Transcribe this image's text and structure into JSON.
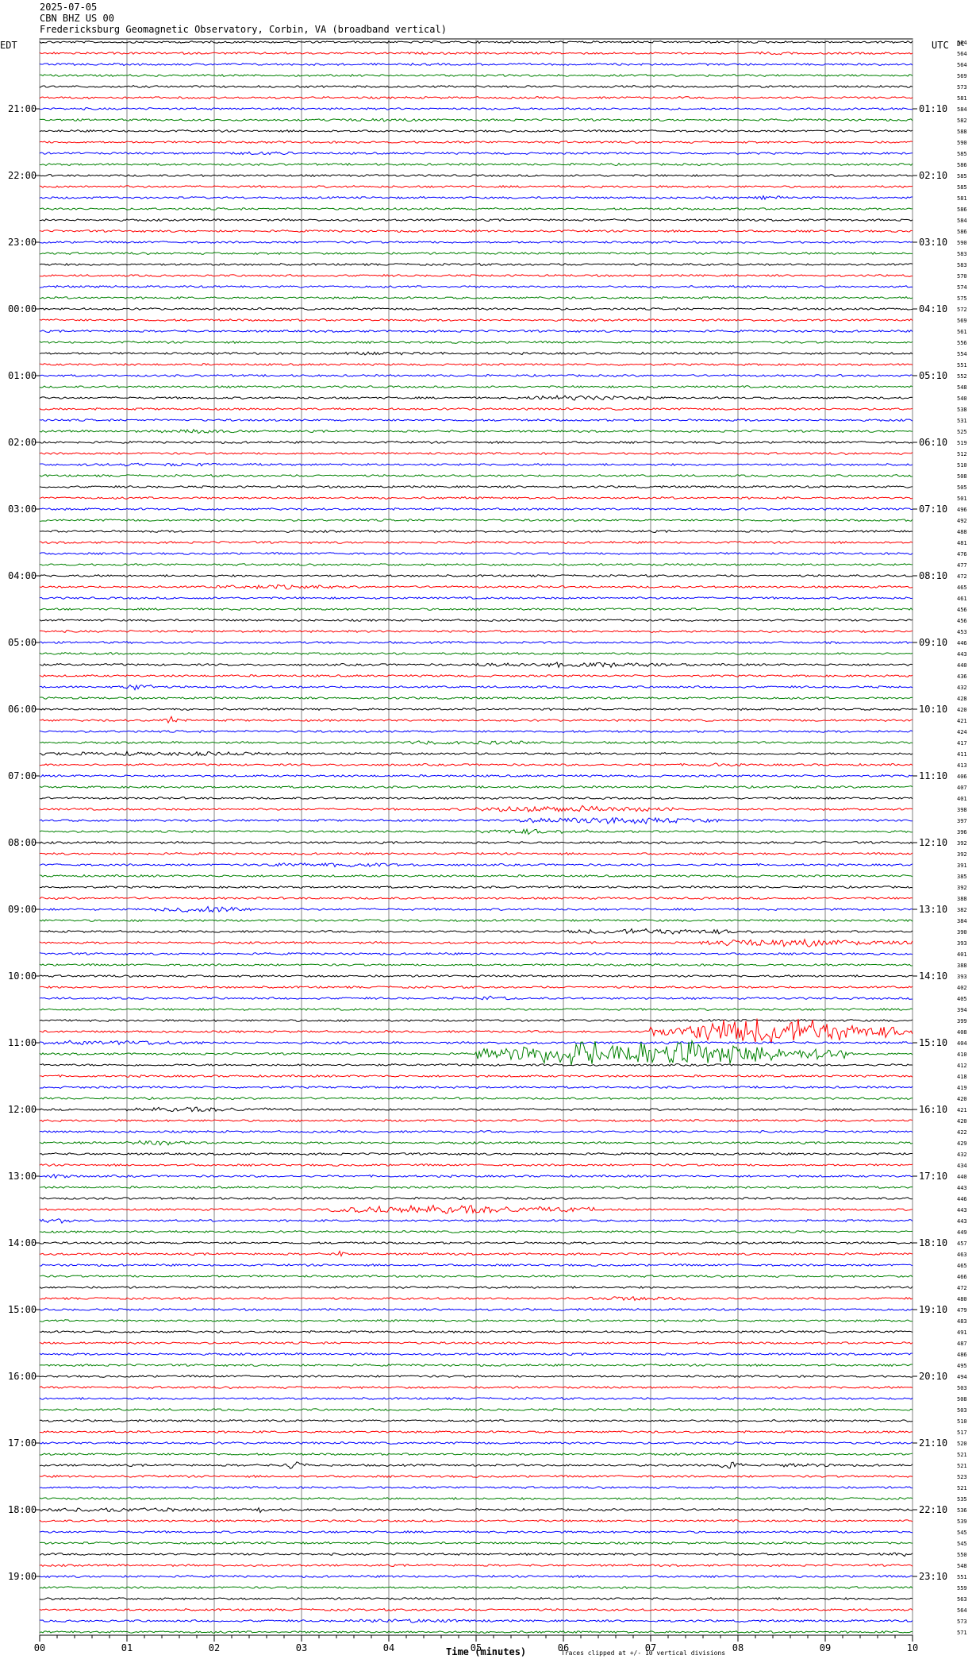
{
  "header": {
    "date": "2025-07-05",
    "station": "CBN BHZ US 00",
    "observatory": "Fredericksburg Geomagnetic Observatory, Corbin, VA (broadband vertical)"
  },
  "left_timezone": "EDT",
  "right_timezone": "UTC",
  "right_label_header": "DC",
  "xlabel": "Time (minutes)",
  "footer_note": "Traces clipped at +/- 10 vertical divisions",
  "chart_data": {
    "type": "line",
    "title": "",
    "xlabel": "Time (minutes)",
    "xlim": [
      0,
      10
    ],
    "x_ticks": [
      "00",
      "01",
      "02",
      "03",
      "04",
      "05",
      "06",
      "07",
      "08",
      "09",
      "10"
    ],
    "grid": "vertical lines at each minute",
    "trace_colors": [
      "#000000",
      "#ff0000",
      "#0000ff",
      "#008000"
    ],
    "left_hour_labels": [
      {
        "row": 6,
        "label": "21:00"
      },
      {
        "row": 12,
        "label": "22:00"
      },
      {
        "row": 18,
        "label": "23:00"
      },
      {
        "row": 24,
        "label": "00:00"
      },
      {
        "row": 30,
        "label": "01:00"
      },
      {
        "row": 36,
        "label": "02:00"
      },
      {
        "row": 42,
        "label": "03:00"
      },
      {
        "row": 48,
        "label": "04:00"
      },
      {
        "row": 54,
        "label": "05:00"
      },
      {
        "row": 60,
        "label": "06:00"
      },
      {
        "row": 66,
        "label": "07:00"
      },
      {
        "row": 72,
        "label": "08:00"
      },
      {
        "row": 78,
        "label": "09:00"
      },
      {
        "row": 84,
        "label": "10:00"
      },
      {
        "row": 90,
        "label": "11:00"
      },
      {
        "row": 96,
        "label": "12:00"
      },
      {
        "row": 102,
        "label": "13:00"
      },
      {
        "row": 108,
        "label": "14:00"
      },
      {
        "row": 114,
        "label": "15:00"
      },
      {
        "row": 120,
        "label": "16:00"
      },
      {
        "row": 126,
        "label": "17:00"
      },
      {
        "row": 132,
        "label": "18:00"
      },
      {
        "row": 138,
        "label": "19:00"
      }
    ],
    "right_hour_labels": [
      {
        "row": 6,
        "label": "01:10"
      },
      {
        "row": 12,
        "label": "02:10"
      },
      {
        "row": 18,
        "label": "03:10"
      },
      {
        "row": 24,
        "label": "04:10"
      },
      {
        "row": 30,
        "label": "05:10"
      },
      {
        "row": 36,
        "label": "06:10"
      },
      {
        "row": 42,
        "label": "07:10"
      },
      {
        "row": 48,
        "label": "08:10"
      },
      {
        "row": 54,
        "label": "09:10"
      },
      {
        "row": 60,
        "label": "10:10"
      },
      {
        "row": 66,
        "label": "11:10"
      },
      {
        "row": 72,
        "label": "12:10"
      },
      {
        "row": 78,
        "label": "13:10"
      },
      {
        "row": 84,
        "label": "14:10"
      },
      {
        "row": 90,
        "label": "15:10"
      },
      {
        "row": 96,
        "label": "16:10"
      },
      {
        "row": 102,
        "label": "17:10"
      },
      {
        "row": 108,
        "label": "18:10"
      },
      {
        "row": 114,
        "label": "19:10"
      },
      {
        "row": 120,
        "label": "20:10"
      },
      {
        "row": 126,
        "label": "21:10"
      },
      {
        "row": 132,
        "label": "22:10"
      },
      {
        "row": 138,
        "label": "23:10"
      }
    ],
    "dc_offsets": [
      564,
      564,
      564,
      569,
      573,
      581,
      584,
      582,
      588,
      590,
      585,
      586,
      585,
      585,
      581,
      586,
      584,
      586,
      590,
      583,
      583,
      570,
      574,
      575,
      572,
      569,
      561,
      556,
      554,
      551,
      552,
      548,
      540,
      538,
      531,
      525,
      519,
      512,
      510,
      508,
      505,
      501,
      496,
      492,
      488,
      481,
      476,
      477,
      472,
      465,
      461,
      456,
      456,
      453,
      446,
      443,
      440,
      436,
      432,
      428,
      420,
      421,
      424,
      417,
      411,
      413,
      406,
      407,
      401,
      398,
      397,
      396,
      392,
      392,
      391,
      385,
      392,
      388,
      382,
      384,
      390,
      393,
      401,
      388,
      393,
      402,
      405,
      394,
      399,
      408,
      404,
      410,
      412,
      418,
      419,
      420,
      421,
      420,
      422,
      429,
      432,
      434,
      440,
      443,
      446,
      443,
      443,
      449,
      457,
      463,
      465,
      466,
      472,
      480,
      479,
      483,
      491,
      487,
      486,
      495,
      494,
      503,
      508,
      503,
      510,
      517,
      520,
      521,
      521,
      523,
      521,
      535,
      536,
      539,
      545,
      545,
      550,
      548,
      551,
      559,
      563,
      564,
      573,
      571
    ],
    "events": [
      {
        "row": 1,
        "start_min": 8.1,
        "end_min": 8.6,
        "amp": 0.6
      },
      {
        "row": 7,
        "start_min": 3.3,
        "end_min": 4.7,
        "amp": 0.6
      },
      {
        "row": 10,
        "start_min": 2.2,
        "end_min": 2.9,
        "amp": 1.0
      },
      {
        "row": 14,
        "start_min": 8.2,
        "end_min": 8.6,
        "amp": 1.0
      },
      {
        "row": 28,
        "start_min": 3.2,
        "end_min": 4.6,
        "amp": 0.8
      },
      {
        "row": 32,
        "start_min": 5.5,
        "end_min": 7.0,
        "amp": 1.5
      },
      {
        "row": 35,
        "start_min": 1.4,
        "end_min": 2.4,
        "amp": 1.0
      },
      {
        "row": 38,
        "start_min": 0.5,
        "end_min": 2.6,
        "amp": 0.6
      },
      {
        "row": 49,
        "start_min": 2.0,
        "end_min": 3.6,
        "amp": 1.2
      },
      {
        "row": 56,
        "start_min": 5.0,
        "end_min": 7.5,
        "amp": 1.5
      },
      {
        "row": 58,
        "start_min": 1.0,
        "end_min": 1.3,
        "amp": 3.5
      },
      {
        "row": 61,
        "start_min": 1.4,
        "end_min": 1.6,
        "amp": 3.0
      },
      {
        "row": 63,
        "start_min": 4.0,
        "end_min": 6.0,
        "amp": 1.0
      },
      {
        "row": 64,
        "start_min": 0.0,
        "end_min": 3.0,
        "amp": 1.2
      },
      {
        "row": 65,
        "start_min": 7.5,
        "end_min": 8.0,
        "amp": 0.8
      },
      {
        "row": 69,
        "start_min": 5.0,
        "end_min": 7.3,
        "amp": 2.5
      },
      {
        "row": 70,
        "start_min": 5.5,
        "end_min": 7.8,
        "amp": 2.5
      },
      {
        "row": 71,
        "start_min": 5.0,
        "end_min": 6.3,
        "amp": 1.5
      },
      {
        "row": 74,
        "start_min": 2.5,
        "end_min": 4.3,
        "amp": 1.2
      },
      {
        "row": 78,
        "start_min": 1.3,
        "end_min": 2.6,
        "amp": 2.5
      },
      {
        "row": 80,
        "start_min": 6.0,
        "end_min": 8.3,
        "amp": 1.8
      },
      {
        "row": 81,
        "start_min": 7.5,
        "end_min": 10.0,
        "amp": 3.0
      },
      {
        "row": 86,
        "start_min": 5.0,
        "end_min": 5.4,
        "amp": 1.5
      },
      {
        "row": 89,
        "start_min": 7.0,
        "end_min": 10.0,
        "amp": 12.0
      },
      {
        "row": 90,
        "start_min": 0.0,
        "end_min": 2.0,
        "amp": 1.5
      },
      {
        "row": 91,
        "start_min": 5.0,
        "end_min": 9.3,
        "amp": 12.0
      },
      {
        "row": 96,
        "start_min": 1.0,
        "end_min": 2.7,
        "amp": 1.5
      },
      {
        "row": 99,
        "start_min": 1.0,
        "end_min": 1.8,
        "amp": 1.5
      },
      {
        "row": 102,
        "start_min": 0.1,
        "end_min": 0.4,
        "amp": 2.0
      },
      {
        "row": 105,
        "start_min": 3.3,
        "end_min": 6.5,
        "amp": 3.5
      },
      {
        "row": 106,
        "start_min": 0.0,
        "end_min": 0.4,
        "amp": 2.0
      },
      {
        "row": 109,
        "start_min": 3.4,
        "end_min": 3.5,
        "amp": 4.0
      },
      {
        "row": 113,
        "start_min": 6.3,
        "end_min": 7.5,
        "amp": 1.2
      },
      {
        "row": 128,
        "start_min": 2.8,
        "end_min": 3.1,
        "amp": 3.0
      },
      {
        "row": 128,
        "start_min": 7.8,
        "end_min": 8.1,
        "amp": 3.0
      },
      {
        "row": 128,
        "start_min": 8.4,
        "end_min": 9.2,
        "amp": 1.0
      },
      {
        "row": 132,
        "start_min": 0.0,
        "end_min": 2.0,
        "amp": 1.2
      },
      {
        "row": 132,
        "start_min": 2.5,
        "end_min": 2.6,
        "amp": 4.0
      },
      {
        "row": 136,
        "start_min": 9.6,
        "end_min": 10.0,
        "amp": 1.5
      },
      {
        "row": 142,
        "start_min": 3.5,
        "end_min": 5.2,
        "amp": 1.0
      }
    ]
  }
}
